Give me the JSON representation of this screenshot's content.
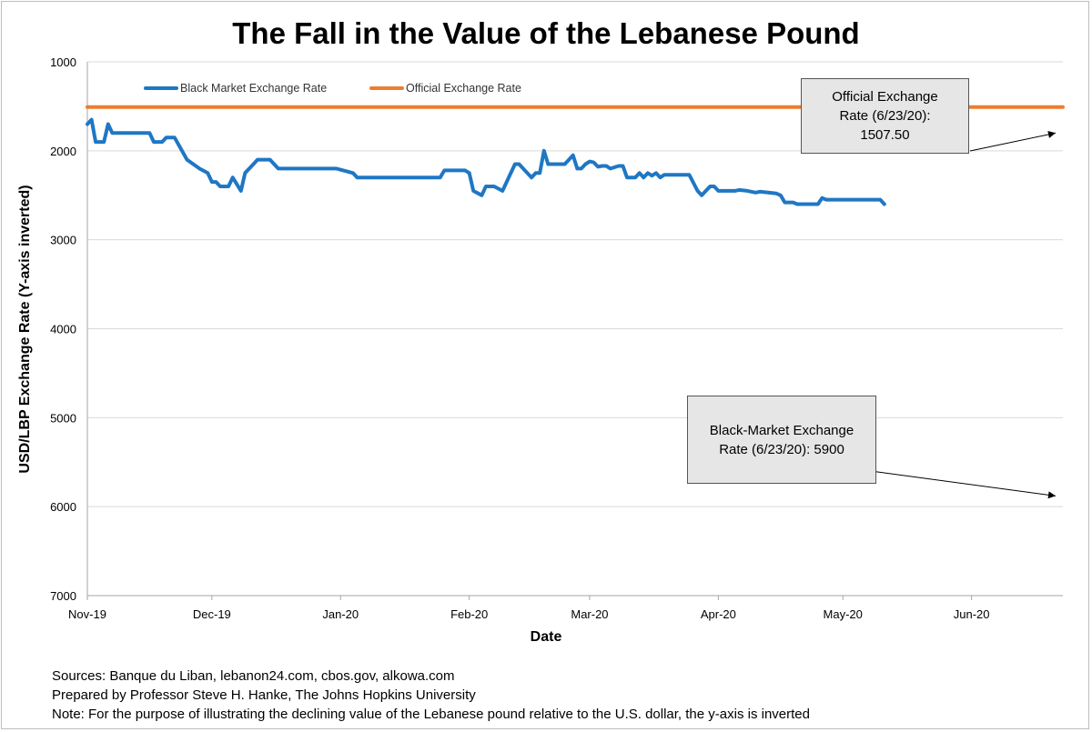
{
  "chart_data": {
    "type": "line",
    "title": "The Fall in the Value of the Lebanese Pound",
    "xlabel": "Date",
    "ylabel": "USD/LBP Exchange  Rate (Y-axis inverted)",
    "y_inverted": true,
    "ylim": [
      1000,
      7000
    ],
    "y_ticks": [
      "1000",
      "2000",
      "3000",
      "4000",
      "5000",
      "6000",
      "7000"
    ],
    "x_ticks": [
      "Nov-19",
      "Dec-19",
      "Jan-20",
      "Feb-20",
      "Mar-20",
      "Apr-20",
      "May-20",
      "Jun-20"
    ],
    "xlim": [
      "2019-11-01",
      "2020-06-23"
    ],
    "grid": "horizontal",
    "legend_position": "top-left",
    "series": [
      {
        "name": "Black Market Exchange Rate",
        "color": "#1f77c4",
        "points": [
          [
            "2019-11-01",
            1700
          ],
          [
            "2019-11-02",
            1650
          ],
          [
            "2019-11-03",
            1900
          ],
          [
            "2019-11-05",
            1900
          ],
          [
            "2019-11-06",
            1700
          ],
          [
            "2019-11-07",
            1800
          ],
          [
            "2019-11-10",
            1800
          ],
          [
            "2019-11-16",
            1800
          ],
          [
            "2019-11-17",
            1900
          ],
          [
            "2019-11-19",
            1900
          ],
          [
            "2019-11-20",
            1850
          ],
          [
            "2019-11-22",
            1850
          ],
          [
            "2019-11-25",
            2100
          ],
          [
            "2019-11-28",
            2200
          ],
          [
            "2019-11-30",
            2250
          ],
          [
            "2019-12-01",
            2350
          ],
          [
            "2019-12-02",
            2350
          ],
          [
            "2019-12-03",
            2400
          ],
          [
            "2019-12-05",
            2400
          ],
          [
            "2019-12-06",
            2300
          ],
          [
            "2019-12-08",
            2450
          ],
          [
            "2019-12-09",
            2250
          ],
          [
            "2019-12-11",
            2150
          ],
          [
            "2019-12-12",
            2100
          ],
          [
            "2019-12-15",
            2100
          ],
          [
            "2019-12-17",
            2200
          ],
          [
            "2019-12-31",
            2200
          ],
          [
            "2020-01-04",
            2250
          ],
          [
            "2020-01-05",
            2300
          ],
          [
            "2020-01-10",
            2300
          ],
          [
            "2020-01-14",
            2300
          ],
          [
            "2020-01-16",
            2300
          ],
          [
            "2020-01-22",
            2300
          ],
          [
            "2020-01-25",
            2300
          ],
          [
            "2020-01-26",
            2220
          ],
          [
            "2020-01-28",
            2220
          ],
          [
            "2020-01-31",
            2220
          ],
          [
            "2020-02-01",
            2250
          ],
          [
            "2020-02-02",
            2450
          ],
          [
            "2020-02-04",
            2500
          ],
          [
            "2020-02-05",
            2400
          ],
          [
            "2020-02-07",
            2400
          ],
          [
            "2020-02-09",
            2450
          ],
          [
            "2020-02-12",
            2150
          ],
          [
            "2020-02-13",
            2150
          ],
          [
            "2020-02-15",
            2250
          ],
          [
            "2020-02-16",
            2300
          ],
          [
            "2020-02-17",
            2250
          ],
          [
            "2020-02-18",
            2250
          ],
          [
            "2020-02-19",
            2000
          ],
          [
            "2020-02-20",
            2150
          ],
          [
            "2020-02-22",
            2150
          ],
          [
            "2020-02-23",
            2150
          ],
          [
            "2020-02-24",
            2150
          ],
          [
            "2020-02-25",
            2100
          ],
          [
            "2020-02-26",
            2050
          ],
          [
            "2020-02-27",
            2200
          ],
          [
            "2020-02-28",
            2200
          ],
          [
            "2020-02-29",
            2150
          ],
          [
            "2020-03-01",
            2120
          ],
          [
            "2020-03-02",
            2130
          ],
          [
            "2020-03-03",
            2180
          ],
          [
            "2020-03-04",
            2170
          ],
          [
            "2020-03-05",
            2170
          ],
          [
            "2020-03-06",
            2200
          ],
          [
            "2020-03-08",
            2170
          ],
          [
            "2020-03-09",
            2170
          ],
          [
            "2020-03-10",
            2300
          ],
          [
            "2020-03-12",
            2300
          ],
          [
            "2020-03-13",
            2250
          ],
          [
            "2020-03-14",
            2300
          ],
          [
            "2020-03-15",
            2250
          ],
          [
            "2020-03-16",
            2280
          ],
          [
            "2020-03-17",
            2250
          ],
          [
            "2020-03-18",
            2300
          ],
          [
            "2020-03-19",
            2270
          ],
          [
            "2020-03-20",
            2270
          ],
          [
            "2020-03-21",
            2270
          ],
          [
            "2020-03-25",
            2270
          ],
          [
            "2020-03-27",
            2450
          ],
          [
            "2020-03-28",
            2500
          ],
          [
            "2020-03-30",
            2400
          ],
          [
            "2020-03-31",
            2400
          ],
          [
            "2020-04-01",
            2450
          ],
          [
            "2020-04-02",
            2450
          ],
          [
            "2020-04-05",
            2450
          ],
          [
            "2020-04-06",
            2440
          ],
          [
            "2020-04-08",
            2450
          ],
          [
            "2020-04-10",
            2470
          ],
          [
            "2020-04-11",
            2460
          ],
          [
            "2020-04-13",
            2470
          ],
          [
            "2020-04-15",
            2480
          ],
          [
            "2020-04-16",
            2500
          ],
          [
            "2020-04-17",
            2580
          ],
          [
            "2020-04-19",
            2580
          ],
          [
            "2020-04-20",
            2600
          ],
          [
            "2020-04-22",
            2600
          ],
          [
            "2020-04-23",
            2600
          ],
          [
            "2020-04-24",
            2600
          ],
          [
            "2020-04-25",
            2600
          ],
          [
            "2020-04-26",
            2530
          ],
          [
            "2020-04-27",
            2550
          ],
          [
            "2020-04-30",
            2550
          ],
          [
            "2020-05-02",
            2550
          ],
          [
            "2020-05-06",
            2550
          ],
          [
            "2020-05-08",
            2550
          ],
          [
            "2020-05-10",
            2550
          ],
          [
            "2020-05-11",
            2600
          ]
        ]
      },
      {
        "name": "Official Exchange Rate",
        "color": "#ed7d31",
        "points": [
          [
            "2019-11-01",
            1507.5
          ],
          [
            "2020-06-23",
            1507.5
          ]
        ]
      }
    ],
    "annotations": [
      {
        "text": "Official Exchange\nRate (6/23/20):\n1507.50",
        "target": [
          "2020-06-23",
          1800
        ]
      },
      {
        "text": "Black-Market Exchange\nRate (6/23/20): 5900",
        "target": [
          "2020-06-23",
          5900
        ]
      }
    ]
  },
  "notes": [
    "Sources: Banque du Liban, lebanon24.com, cbos.gov, alkowa.com",
    "Prepared by Professor Steve H. Hanke, The Johns Hopkins University",
    "Note: For the purpose of illustrating the declining value of the Lebanese pound relative to the U.S. dollar, the y-axis is inverted"
  ]
}
